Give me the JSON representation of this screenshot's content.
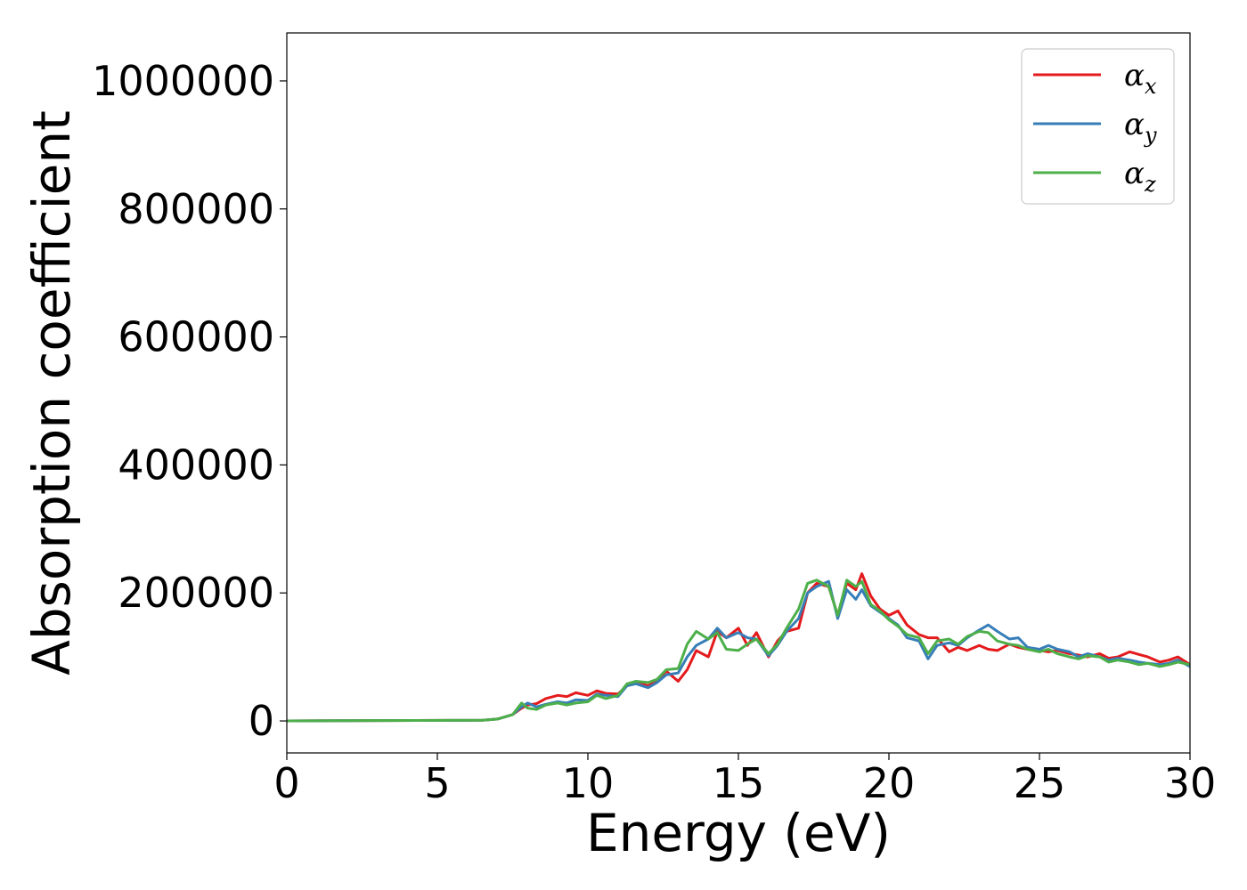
{
  "chart_data": {
    "type": "line",
    "title": "",
    "xlabel": "Energy (eV)",
    "ylabel": "Absorption coefficient",
    "xlim": [
      0,
      30
    ],
    "ylim": [
      -50000,
      1075000
    ],
    "xticks": [
      0,
      5,
      10,
      15,
      20,
      25,
      30
    ],
    "xtick_labels": [
      "0",
      "5",
      "10",
      "15",
      "20",
      "25",
      "30"
    ],
    "yticks": [
      0,
      200000,
      400000,
      600000,
      800000,
      1000000
    ],
    "ytick_labels": [
      "0",
      "200000",
      "400000",
      "600000",
      "800000",
      "1000000"
    ],
    "grid": false,
    "legend_position": "top-right",
    "series": [
      {
        "name": "α",
        "subscript": "x",
        "color": "#e41a1c",
        "x": [
          0,
          6.5,
          7.0,
          7.5,
          7.8,
          8.0,
          8.3,
          8.6,
          9.0,
          9.3,
          9.6,
          10.0,
          10.3,
          10.6,
          11.0,
          11.3,
          11.6,
          12.0,
          12.3,
          12.6,
          13.0,
          13.3,
          13.6,
          14.0,
          14.3,
          14.6,
          15.0,
          15.3,
          15.6,
          16.0,
          16.3,
          16.6,
          17.0,
          17.3,
          17.6,
          18.0,
          18.3,
          18.6,
          18.9,
          19.1,
          19.4,
          19.7,
          20.0,
          20.3,
          20.6,
          21.0,
          21.3,
          21.6,
          22.0,
          22.3,
          22.6,
          23.0,
          23.3,
          23.6,
          24.0,
          24.3,
          24.6,
          25.0,
          25.3,
          25.6,
          26.0,
          26.3,
          26.6,
          27.0,
          27.3,
          27.6,
          28.0,
          28.3,
          28.6,
          29.0,
          29.3,
          29.6,
          30.0
        ],
        "y": [
          0,
          1000,
          3000,
          10000,
          20000,
          25000,
          27000,
          35000,
          40000,
          38000,
          44000,
          40000,
          47000,
          43000,
          42000,
          55000,
          60000,
          55000,
          62000,
          78000,
          62000,
          80000,
          110000,
          100000,
          140000,
          130000,
          145000,
          118000,
          138000,
          100000,
          125000,
          140000,
          145000,
          200000,
          215000,
          210000,
          165000,
          215000,
          205000,
          230000,
          195000,
          175000,
          165000,
          172000,
          150000,
          135000,
          130000,
          130000,
          108000,
          115000,
          110000,
          118000,
          112000,
          110000,
          120000,
          115000,
          112000,
          110000,
          108000,
          110000,
          105000,
          103000,
          100000,
          105000,
          98000,
          100000,
          108000,
          104000,
          100000,
          92000,
          95000,
          100000,
          88000
        ]
      },
      {
        "name": "α",
        "subscript": "y",
        "color": "#377eb8",
        "x": [
          0,
          6.5,
          7.0,
          7.5,
          7.8,
          8.0,
          8.3,
          8.6,
          9.0,
          9.3,
          9.6,
          10.0,
          10.3,
          10.6,
          11.0,
          11.3,
          11.6,
          12.0,
          12.3,
          12.6,
          13.0,
          13.3,
          13.6,
          14.0,
          14.3,
          14.6,
          15.0,
          15.3,
          15.6,
          16.0,
          16.3,
          16.6,
          17.0,
          17.3,
          17.6,
          18.0,
          18.3,
          18.6,
          18.9,
          19.1,
          19.4,
          19.7,
          20.0,
          20.3,
          20.6,
          21.0,
          21.3,
          21.6,
          22.0,
          22.3,
          22.6,
          23.0,
          23.3,
          23.6,
          24.0,
          24.3,
          24.6,
          25.0,
          25.3,
          25.6,
          26.0,
          26.3,
          26.6,
          27.0,
          27.3,
          27.6,
          28.0,
          28.3,
          28.6,
          29.0,
          29.3,
          29.6,
          30.0
        ],
        "y": [
          0,
          1000,
          3000,
          10000,
          22000,
          28000,
          22000,
          26000,
          30000,
          28000,
          33000,
          32000,
          42000,
          40000,
          38000,
          55000,
          58000,
          52000,
          60000,
          72000,
          75000,
          100000,
          118000,
          128000,
          145000,
          130000,
          138000,
          130000,
          128000,
          102000,
          118000,
          140000,
          160000,
          200000,
          210000,
          218000,
          160000,
          205000,
          190000,
          205000,
          180000,
          170000,
          160000,
          150000,
          130000,
          125000,
          97000,
          118000,
          122000,
          118000,
          130000,
          142000,
          150000,
          140000,
          128000,
          130000,
          115000,
          112000,
          118000,
          112000,
          108000,
          100000,
          105000,
          100000,
          95000,
          98000,
          95000,
          92000,
          90000,
          88000,
          90000,
          95000,
          85000
        ]
      },
      {
        "name": "α",
        "subscript": "z",
        "color": "#4daf4a",
        "x": [
          0,
          6.5,
          7.0,
          7.5,
          7.8,
          8.0,
          8.3,
          8.6,
          9.0,
          9.3,
          9.6,
          10.0,
          10.3,
          10.6,
          11.0,
          11.3,
          11.6,
          12.0,
          12.3,
          12.6,
          13.0,
          13.3,
          13.6,
          14.0,
          14.3,
          14.6,
          15.0,
          15.3,
          15.6,
          16.0,
          16.3,
          16.6,
          17.0,
          17.3,
          17.6,
          18.0,
          18.3,
          18.6,
          18.9,
          19.1,
          19.4,
          19.7,
          20.0,
          20.3,
          20.6,
          21.0,
          21.3,
          21.6,
          22.0,
          22.3,
          22.6,
          23.0,
          23.3,
          23.6,
          24.0,
          24.3,
          24.6,
          25.0,
          25.3,
          25.6,
          26.0,
          26.3,
          26.6,
          27.0,
          27.3,
          27.6,
          28.0,
          28.3,
          28.6,
          29.0,
          29.3,
          29.6,
          30.0
        ],
        "y": [
          0,
          1000,
          3000,
          10000,
          28000,
          20000,
          18000,
          25000,
          28000,
          25000,
          28000,
          30000,
          40000,
          35000,
          40000,
          58000,
          62000,
          60000,
          65000,
          80000,
          82000,
          120000,
          140000,
          128000,
          138000,
          112000,
          110000,
          120000,
          128000,
          105000,
          120000,
          145000,
          175000,
          215000,
          220000,
          210000,
          165000,
          220000,
          210000,
          218000,
          182000,
          172000,
          158000,
          148000,
          135000,
          130000,
          105000,
          125000,
          128000,
          120000,
          132000,
          140000,
          138000,
          125000,
          120000,
          118000,
          112000,
          108000,
          112000,
          105000,
          100000,
          97000,
          102000,
          100000,
          92000,
          95000,
          92000,
          88000,
          90000,
          85000,
          88000,
          92000,
          88000
        ]
      }
    ]
  }
}
